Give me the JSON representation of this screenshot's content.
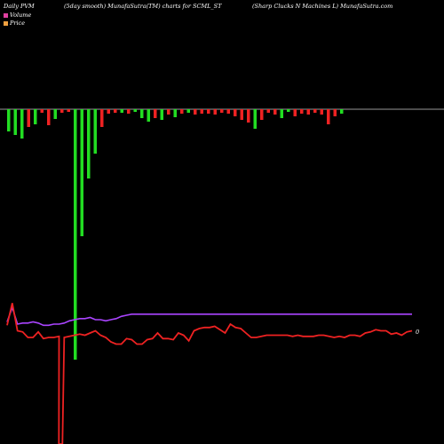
{
  "header": {
    "left": "Daily PVM",
    "middle": "(5day smooth) MunafaSutra(TM) charts for SCML_ST",
    "right": "(Sharp Clucks N  Machines L) MunafaSutra.com"
  },
  "legend": {
    "volume_label": "Volume",
    "price_label": "Price",
    "volume_color": "#e040a0",
    "price_color": "#f0a040"
  },
  "colors": {
    "background": "#000000",
    "up_bar": "#22dd22",
    "down_bar": "#ee2222",
    "price_line": "#ee2222",
    "volume_line": "#aa44ff",
    "baseline": "#cccccc"
  },
  "chart_data": {
    "type": "bar",
    "title": "",
    "price_label_value": "0",
    "bars": [
      {
        "v": 25,
        "c": "g"
      },
      {
        "v": 29,
        "c": "g"
      },
      {
        "v": 33,
        "c": "g"
      },
      {
        "v": 20,
        "c": "r"
      },
      {
        "v": 17,
        "c": "g"
      },
      {
        "v": 4,
        "c": "r"
      },
      {
        "v": 18,
        "c": "r"
      },
      {
        "v": 11,
        "c": "g"
      },
      {
        "v": 4,
        "c": "r"
      },
      {
        "v": 3,
        "c": "r"
      },
      {
        "v": 282,
        "c": "g"
      },
      {
        "v": 143,
        "c": "g"
      },
      {
        "v": 78,
        "c": "g"
      },
      {
        "v": 50,
        "c": "g"
      },
      {
        "v": 20,
        "c": "r"
      },
      {
        "v": 5,
        "c": "r"
      },
      {
        "v": 4,
        "c": "r"
      },
      {
        "v": 4,
        "c": "g"
      },
      {
        "v": 5,
        "c": "r"
      },
      {
        "v": 3,
        "c": "g"
      },
      {
        "v": 10,
        "c": "g"
      },
      {
        "v": 14,
        "c": "g"
      },
      {
        "v": 10,
        "c": "r"
      },
      {
        "v": 12,
        "c": "g"
      },
      {
        "v": 6,
        "c": "r"
      },
      {
        "v": 9,
        "c": "g"
      },
      {
        "v": 5,
        "c": "r"
      },
      {
        "v": 4,
        "c": "g"
      },
      {
        "v": 6,
        "c": "r"
      },
      {
        "v": 5,
        "c": "r"
      },
      {
        "v": 5,
        "c": "r"
      },
      {
        "v": 6,
        "c": "r"
      },
      {
        "v": 4,
        "c": "r"
      },
      {
        "v": 5,
        "c": "r"
      },
      {
        "v": 8,
        "c": "r"
      },
      {
        "v": 12,
        "c": "r"
      },
      {
        "v": 15,
        "c": "r"
      },
      {
        "v": 22,
        "c": "g"
      },
      {
        "v": 12,
        "c": "r"
      },
      {
        "v": 4,
        "c": "r"
      },
      {
        "v": 6,
        "c": "r"
      },
      {
        "v": 10,
        "c": "g"
      },
      {
        "v": 3,
        "c": "g"
      },
      {
        "v": 8,
        "c": "r"
      },
      {
        "v": 5,
        "c": "r"
      },
      {
        "v": 6,
        "c": "r"
      },
      {
        "v": 4,
        "c": "r"
      },
      {
        "v": 6,
        "c": "r"
      },
      {
        "v": 17,
        "c": "r"
      },
      {
        "v": 8,
        "c": "r"
      },
      {
        "v": 5,
        "c": "g"
      }
    ],
    "price": [
      53,
      33,
      58,
      59,
      64,
      64,
      59,
      65,
      64,
      64,
      63,
      64,
      63,
      62,
      61,
      62,
      60,
      58,
      62,
      64,
      68,
      70,
      70,
      65,
      66,
      70,
      70,
      66,
      65,
      60,
      65,
      65,
      66,
      60,
      62,
      67,
      58,
      56,
      55,
      55,
      54,
      57,
      60,
      52,
      55,
      56,
      60,
      64,
      64,
      63,
      62,
      62,
      62,
      62,
      62,
      63,
      62,
      63,
      63,
      63,
      62,
      62,
      63,
      64,
      63,
      64,
      62,
      62,
      63,
      60,
      59,
      57,
      58,
      58,
      61,
      60,
      62,
      59,
      58
    ],
    "volume": [
      50,
      37,
      52,
      51,
      51,
      50,
      51,
      53,
      53,
      52,
      52,
      51,
      49,
      48,
      47,
      47,
      46,
      48,
      48,
      49,
      48,
      47,
      45,
      44,
      43,
      43,
      43,
      43,
      43,
      43,
      43,
      43,
      43,
      43,
      43,
      43,
      43,
      43,
      43,
      43,
      43,
      43,
      43,
      43,
      43,
      43,
      43,
      43,
      43,
      43,
      43,
      43,
      43,
      43,
      43,
      43,
      43,
      43,
      43,
      43,
      43,
      43,
      43,
      43,
      43,
      43,
      43,
      43,
      43,
      43,
      43,
      43,
      43,
      43,
      43,
      43,
      43,
      43,
      43
    ]
  }
}
